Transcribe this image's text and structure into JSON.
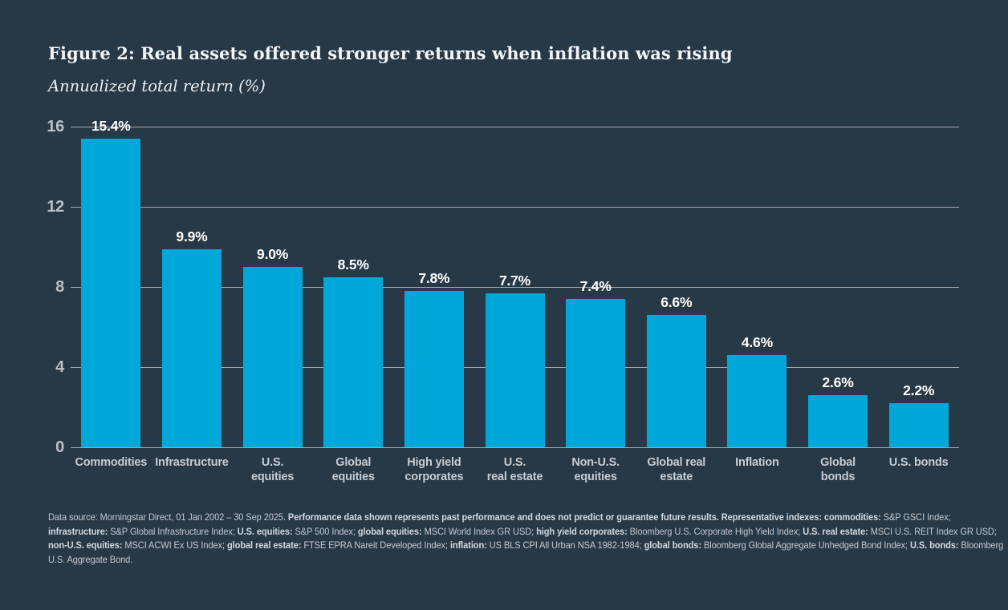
{
  "header": {
    "title": "Figure 2: Real assets offered stronger returns when inflation was rising",
    "subtitle": "Annualized total return (%)"
  },
  "colors": {
    "background": "#273847",
    "bar": "#00a8d9",
    "gridline": "#a2a9b0",
    "axis_tick_label": "#bac1c8",
    "value_label": "#ffffff",
    "category_label": "#c7cdd3",
    "footnote_text": "#c4cad0",
    "title_text": "#f4f6f8"
  },
  "chart_data": {
    "type": "bar",
    "title": "Figure 2: Real assets offered stronger returns when inflation was rising",
    "ylabel": "Annualized total return (%)",
    "xlabel": "",
    "categories": [
      "Commodities",
      "Infrastructure",
      "U.S.\nequities",
      "Global\nequities",
      "High yield\ncorporates",
      "U.S.\nreal estate",
      "Non-U.S.\nequities",
      "Global real\nestate",
      "Inflation",
      "Global\nbonds",
      "U.S. bonds"
    ],
    "values": [
      15.4,
      9.9,
      9.0,
      8.5,
      7.8,
      7.7,
      7.4,
      6.6,
      4.6,
      2.6,
      2.2
    ],
    "value_labels": [
      "15.4%",
      "9.9%",
      "9.0%",
      "8.5%",
      "7.8%",
      "7.7%",
      "7.4%",
      "6.6%",
      "4.6%",
      "2.6%",
      "2.2%"
    ],
    "y_ticks": [
      0,
      4,
      8,
      12,
      16
    ],
    "ylim": [
      0,
      16
    ],
    "grid": "horizontal",
    "legend": "none"
  },
  "footnote": {
    "lines": [
      [
        {
          "t": "Data source: Morningstar Direct, 01 Jan 2002 – 30 Sep 2025. ",
          "b": false
        },
        {
          "t": "Performance data shown represents past performance and does not predict or guarantee future results. Representative indexes: commodities:",
          "b": true
        },
        {
          "t": " S&P GSCI Index;",
          "b": false
        }
      ],
      [
        {
          "t": "infrastructure:",
          "b": true
        },
        {
          "t": " S&P Global Infrastructure Index; ",
          "b": false
        },
        {
          "t": "U.S. equities:",
          "b": true
        },
        {
          "t": " S&P 500 Index; ",
          "b": false
        },
        {
          "t": "global equities:",
          "b": true
        },
        {
          "t": " MSCI World Index GR USD; ",
          "b": false
        },
        {
          "t": "high yield corporates:",
          "b": true
        },
        {
          "t": " Bloomberg U.S. Corporate High Yield Index; ",
          "b": false
        },
        {
          "t": "U.S. real estate:",
          "b": true
        },
        {
          "t": " MSCI U.S. REIT Index GR USD;",
          "b": false
        }
      ],
      [
        {
          "t": "non-U.S. equities:",
          "b": true
        },
        {
          "t": " MSCI ACWI Ex US Index; ",
          "b": false
        },
        {
          "t": "global real estate:",
          "b": true
        },
        {
          "t": " FTSE EPRA Nareit Developed Index; ",
          "b": false
        },
        {
          "t": "inflation:",
          "b": true
        },
        {
          "t": " US BLS CPI All Urban NSA 1982-1984; ",
          "b": false
        },
        {
          "t": "global bonds:",
          "b": true
        },
        {
          "t": " Bloomberg Global Aggregate Unhedged Bond Index; ",
          "b": false
        },
        {
          "t": "U.S. bonds:",
          "b": true
        },
        {
          "t": " Bloomberg",
          "b": false
        }
      ],
      [
        {
          "t": "U.S. Aggregate Bond.",
          "b": false
        }
      ]
    ]
  }
}
